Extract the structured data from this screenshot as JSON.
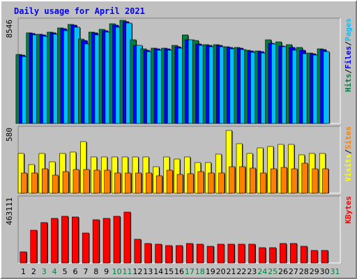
{
  "chart_data": [
    {
      "type": "bar",
      "title": "Daily usage for April 2021",
      "categories": [
        "1",
        "2",
        "3",
        "4",
        "5",
        "6",
        "7",
        "8",
        "9",
        "10",
        "11",
        "12",
        "13",
        "14",
        "15",
        "16",
        "17",
        "18",
        "19",
        "20",
        "21",
        "22",
        "23",
        "24",
        "25",
        "26",
        "27",
        "28",
        "29",
        "30",
        "31"
      ],
      "weekend_days": [
        "3",
        "4",
        "10",
        "11",
        "17",
        "18",
        "24",
        "25",
        "31"
      ],
      "ymax_label": "8546",
      "ymax": 8546,
      "series": [
        {
          "name": "Hits",
          "color": "#008040",
          "values": [
            5760,
            7530,
            7440,
            7630,
            7990,
            8280,
            7010,
            7630,
            7820,
            8290,
            8580,
            6990,
            6200,
            6300,
            6300,
            6510,
            7400,
            6900,
            6550,
            6550,
            6410,
            6350,
            6100,
            6070,
            6980,
            6800,
            6550,
            6310,
            5890,
            6200,
            null
          ]
        },
        {
          "name": "Files",
          "color": "#0000ff",
          "values": [
            5690,
            7480,
            7400,
            7560,
            7900,
            8200,
            6930,
            7560,
            7720,
            8210,
            8490,
            6520,
            6130,
            6230,
            6230,
            6420,
            7000,
            6600,
            6500,
            6500,
            6340,
            6290,
            6040,
            6000,
            6680,
            6480,
            6310,
            6090,
            5830,
            6140,
            null
          ]
        },
        {
          "name": "Pages",
          "color": "#00c0ff",
          "values": [
            5560,
            7360,
            7290,
            7430,
            7750,
            8010,
            6600,
            7370,
            7600,
            8000,
            8350,
            6500,
            6000,
            6110,
            6110,
            6300,
            7000,
            6500,
            6400,
            6390,
            6220,
            6170,
            5930,
            5900,
            6600,
            6400,
            6080,
            5800,
            5700,
            6000,
            null
          ]
        }
      ],
      "legend": "right"
    },
    {
      "type": "bar",
      "ymax_label": "580",
      "ymax": 580,
      "series": [
        {
          "name": "Visits",
          "color": "#ffff00",
          "values": [
            362,
            257,
            362,
            283,
            362,
            373,
            465,
            327,
            327,
            327,
            327,
            327,
            327,
            242,
            327,
            311,
            327,
            275,
            275,
            350,
            566,
            445,
            362,
            412,
            420,
            443,
            444,
            345,
            362,
            362,
            null
          ]
        },
        {
          "name": "Sites",
          "color": "#ff8000",
          "values": [
            183,
            183,
            222,
            164,
            195,
            213,
            213,
            210,
            210,
            180,
            180,
            180,
            180,
            160,
            210,
            168,
            175,
            195,
            182,
            182,
            242,
            242,
            230,
            180,
            222,
            232,
            220,
            268,
            222,
            222,
            null
          ]
        }
      ],
      "legend": "right"
    },
    {
      "type": "bar",
      "ymax_label": "463111",
      "ymax": 463111,
      "series": [
        {
          "name": "KBytes",
          "color": "#ff0000",
          "values": [
            80000,
            235000,
            290000,
            320000,
            335000,
            330000,
            215000,
            310000,
            320000,
            335000,
            365000,
            170000,
            140000,
            137000,
            125000,
            124000,
            140000,
            137000,
            120000,
            135000,
            135000,
            138000,
            138000,
            110000,
            110000,
            140000,
            140000,
            120000,
            90000,
            90000,
            null
          ]
        }
      ],
      "legend": "right"
    }
  ],
  "legend_separator": "/"
}
